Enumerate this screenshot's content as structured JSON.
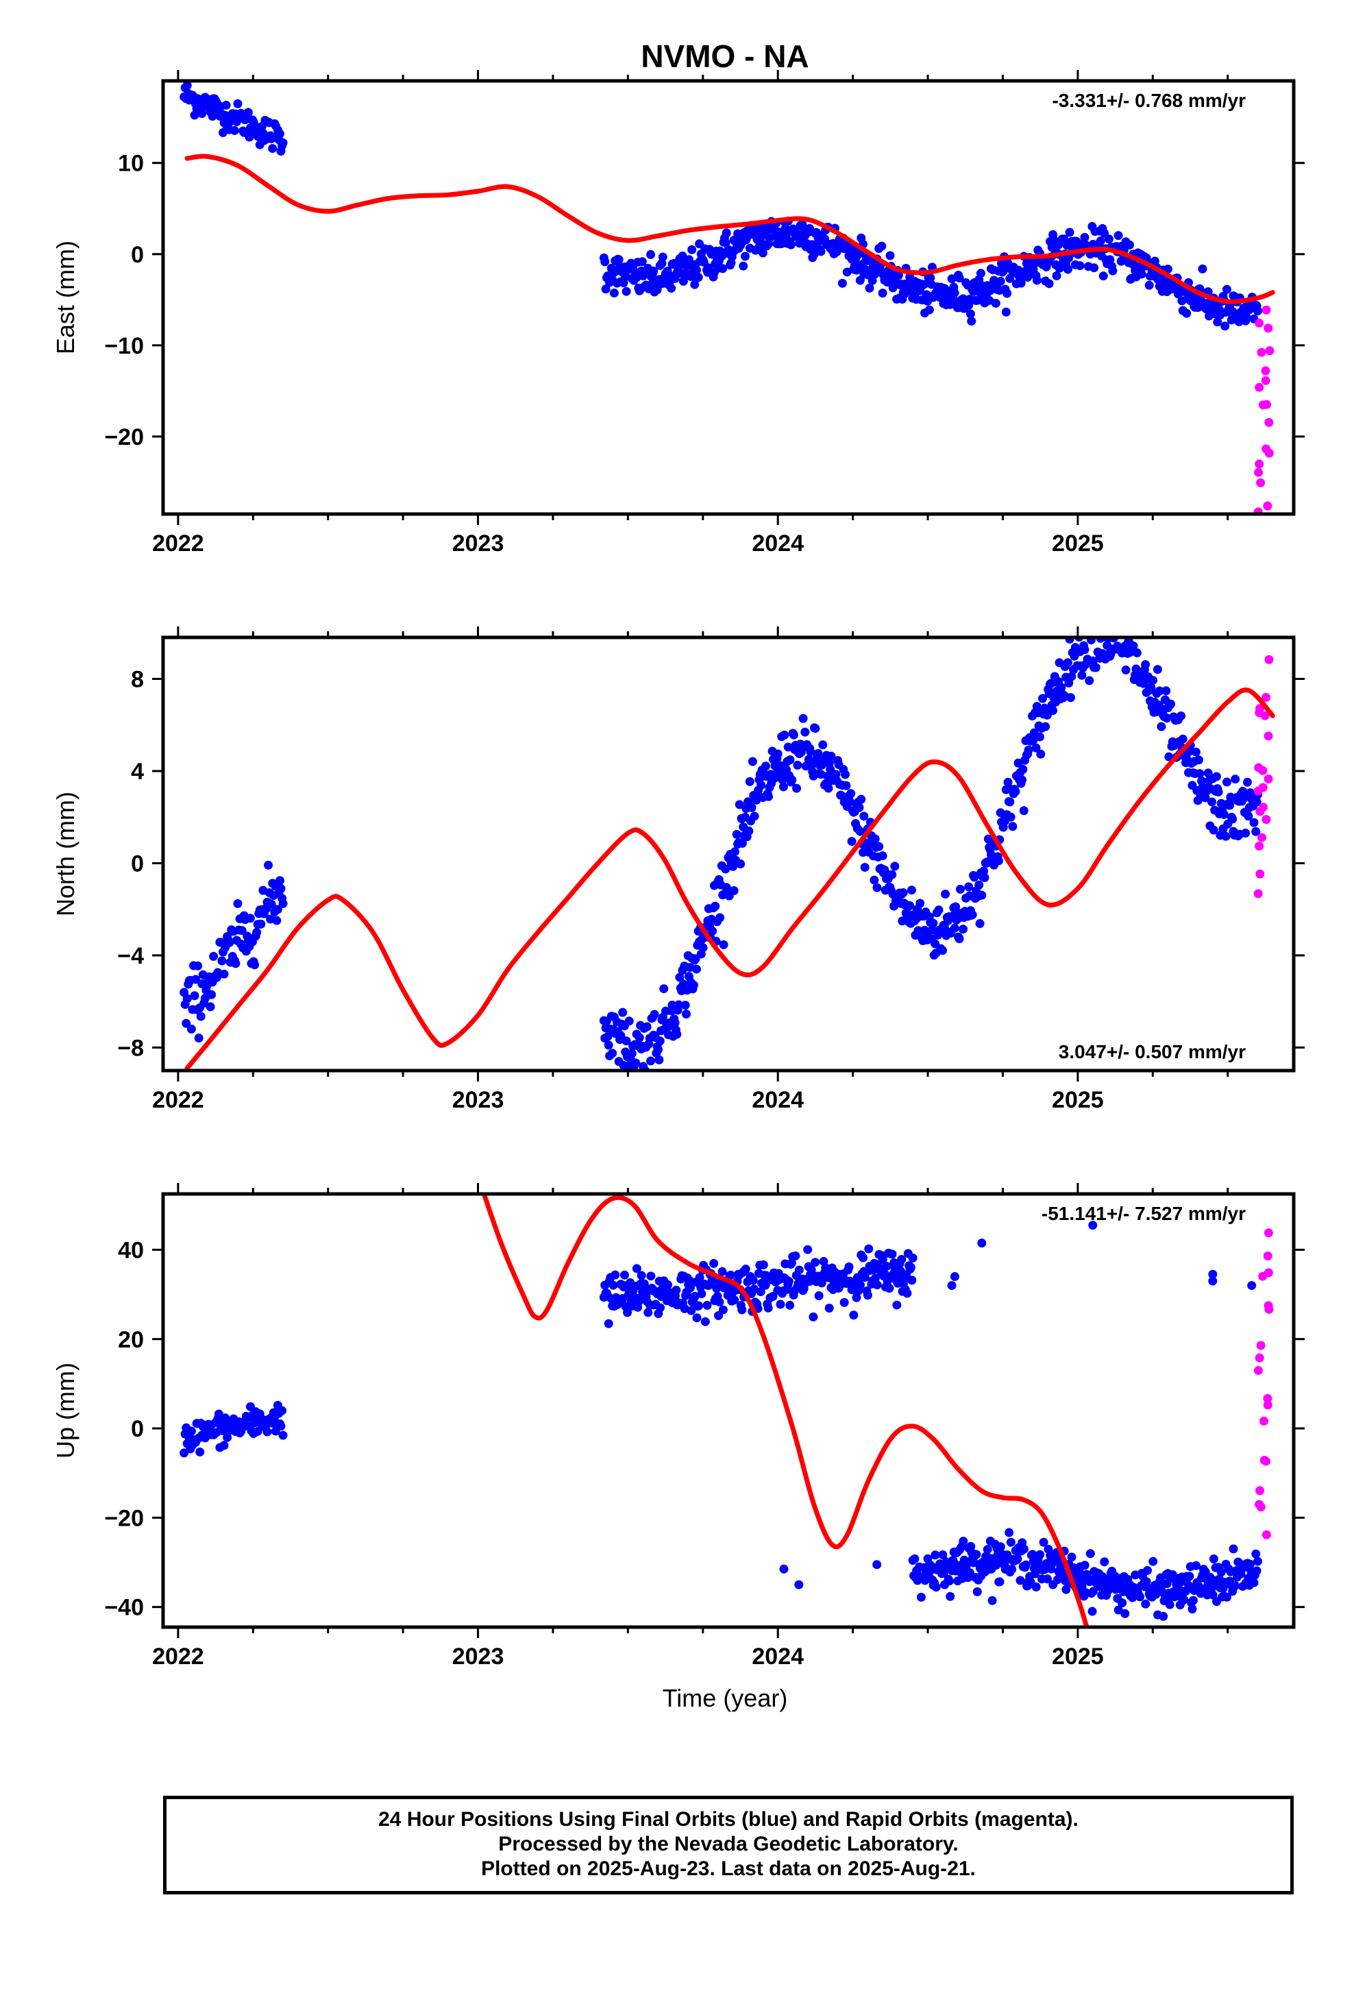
{
  "title": "NVMO - NA",
  "xlabel": "Time (year)",
  "footer": {
    "line1": "24 Hour Positions Using Final Orbits (blue) and Rapid Orbits (magenta).",
    "line2": "Processed by the Nevada Geodetic Laboratory.",
    "line3": "Plotted on 2025-Aug-23. Last data on 2025-Aug-21."
  },
  "colors": {
    "final": "#0000ff",
    "rapid": "#ff00ff",
    "model": "#ff0000",
    "frame": "#000000"
  },
  "chart_data": [
    {
      "type": "scatter",
      "panel": "east",
      "ylabel": "East (mm)",
      "rate_text": "-3.331+/- 0.768 mm/yr",
      "rate_position": "top-right",
      "xlim": [
        2021.95,
        2025.72
      ],
      "ylim": [
        -28.5,
        19
      ],
      "xticks": [
        2022,
        2023,
        2024,
        2025
      ],
      "yticks": [
        10,
        0,
        -10,
        -20
      ],
      "segments": [
        {
          "x0": 2022.02,
          "x1": 2022.35,
          "ya": 17.5,
          "yb": 12.5,
          "amp": 0,
          "phase": 0,
          "noise": 1.4,
          "n": 95
        },
        {
          "x0": 2023.42,
          "x1": 2025.6,
          "ya": 0.5,
          "yb": -3.5,
          "amp": 3.0,
          "phase": 0.2,
          "noise": 1.8,
          "n": 700
        }
      ],
      "rapid": {
        "x0": 2025.6,
        "x1": 2025.64,
        "ya": -6,
        "yb": -28,
        "noise": 1.5,
        "n": 18
      },
      "model": [
        [
          2022.03,
          10.5
        ],
        [
          2022.1,
          10.7
        ],
        [
          2022.2,
          9.7
        ],
        [
          2022.3,
          7.5
        ],
        [
          2022.4,
          5.4
        ],
        [
          2022.5,
          4.7
        ],
        [
          2022.6,
          5.4
        ],
        [
          2022.7,
          6.1
        ],
        [
          2022.8,
          6.4
        ],
        [
          2022.9,
          6.5
        ],
        [
          2023.0,
          6.9
        ],
        [
          2023.1,
          7.4
        ],
        [
          2023.2,
          6.3
        ],
        [
          2023.3,
          4.2
        ],
        [
          2023.4,
          2.3
        ],
        [
          2023.5,
          1.5
        ],
        [
          2023.6,
          2.0
        ],
        [
          2023.7,
          2.6
        ],
        [
          2023.8,
          3.0
        ],
        [
          2023.9,
          3.3
        ],
        [
          2024.0,
          3.7
        ],
        [
          2024.1,
          3.8
        ],
        [
          2024.2,
          2.3
        ],
        [
          2024.3,
          0.2
        ],
        [
          2024.4,
          -1.7
        ],
        [
          2024.5,
          -2.0
        ],
        [
          2024.6,
          -1.2
        ],
        [
          2024.7,
          -0.6
        ],
        [
          2024.8,
          -0.3
        ],
        [
          2024.9,
          -0.2
        ],
        [
          2025.0,
          0.3
        ],
        [
          2025.1,
          0.5
        ],
        [
          2025.2,
          -0.6
        ],
        [
          2025.3,
          -2.3
        ],
        [
          2025.4,
          -4.2
        ],
        [
          2025.5,
          -5.2
        ],
        [
          2025.6,
          -4.8
        ],
        [
          2025.65,
          -4.2
        ]
      ]
    },
    {
      "type": "scatter",
      "panel": "north",
      "ylabel": "North (mm)",
      "rate_text": "3.047+/- 0.507 mm/yr",
      "rate_position": "bottom-right",
      "xlim": [
        2021.95,
        2025.72
      ],
      "ylim": [
        -9,
        9.8
      ],
      "xticks": [
        2022,
        2023,
        2024,
        2025
      ],
      "yticks": [
        8,
        4,
        0,
        -4,
        -8
      ],
      "segments": [
        {
          "x0": 2022.02,
          "x1": 2022.35,
          "ya": -6.5,
          "yb": -1.0,
          "amp": 0,
          "phase": 0,
          "noise": 1.2,
          "n": 95
        },
        {
          "x0": 2023.42,
          "x1": 2025.6,
          "ya": -3.5,
          "yb": 7.5,
          "amp": 5.0,
          "phase": 1.2,
          "noise": 1.1,
          "n": 700
        }
      ],
      "rapid": {
        "x0": 2025.6,
        "x1": 2025.64,
        "ya": 8,
        "yb": -0.5,
        "noise": 1.5,
        "n": 18
      },
      "model": [
        [
          2022.03,
          -8.9
        ],
        [
          2022.1,
          -7.8
        ],
        [
          2022.2,
          -6.2
        ],
        [
          2022.3,
          -4.6
        ],
        [
          2022.4,
          -2.8
        ],
        [
          2022.5,
          -1.6
        ],
        [
          2022.55,
          -1.6
        ],
        [
          2022.65,
          -3.0
        ],
        [
          2022.75,
          -5.5
        ],
        [
          2022.85,
          -7.6
        ],
        [
          2022.9,
          -7.8
        ],
        [
          2023.0,
          -6.6
        ],
        [
          2023.1,
          -4.6
        ],
        [
          2023.2,
          -3.0
        ],
        [
          2023.3,
          -1.5
        ],
        [
          2023.4,
          0.0
        ],
        [
          2023.5,
          1.3
        ],
        [
          2023.55,
          1.3
        ],
        [
          2023.62,
          0.2
        ],
        [
          2023.7,
          -1.8
        ],
        [
          2023.8,
          -3.8
        ],
        [
          2023.88,
          -4.8
        ],
        [
          2023.95,
          -4.5
        ],
        [
          2024.05,
          -2.8
        ],
        [
          2024.15,
          -1.2
        ],
        [
          2024.25,
          0.5
        ],
        [
          2024.35,
          2.2
        ],
        [
          2024.45,
          3.8
        ],
        [
          2024.52,
          4.4
        ],
        [
          2024.6,
          3.8
        ],
        [
          2024.7,
          1.6
        ],
        [
          2024.8,
          -0.5
        ],
        [
          2024.9,
          -1.8
        ],
        [
          2025.0,
          -1.1
        ],
        [
          2025.1,
          0.8
        ],
        [
          2025.2,
          2.6
        ],
        [
          2025.3,
          4.2
        ],
        [
          2025.4,
          5.6
        ],
        [
          2025.5,
          7.0
        ],
        [
          2025.57,
          7.5
        ],
        [
          2025.65,
          6.4
        ]
      ]
    },
    {
      "type": "scatter",
      "panel": "up",
      "ylabel": "Up (mm)",
      "rate_text": "-51.141+/- 7.527 mm/yr",
      "rate_position": "top-right",
      "xlim": [
        2021.95,
        2025.72
      ],
      "ylim": [
        -44.5,
        52.5
      ],
      "xticks": [
        2022,
        2023,
        2024,
        2025
      ],
      "yticks": [
        40,
        20,
        0,
        -20,
        -40
      ],
      "segments": [
        {
          "x0": 2022.02,
          "x1": 2022.35,
          "ya": -2.0,
          "yb": 2.5,
          "amp": 0,
          "phase": 0,
          "noise": 3.0,
          "n": 95
        },
        {
          "x0": 2023.42,
          "x1": 2024.45,
          "ya": 29,
          "yb": 35,
          "amp": 0,
          "phase": 0,
          "noise": 4.5,
          "n": 330
        },
        {
          "x0": 2024.45,
          "x1": 2025.6,
          "ya": -32,
          "yb": -34,
          "amp": 3,
          "phase": 0.5,
          "noise": 4.0,
          "n": 370
        }
      ],
      "extra_points": [
        [
          2024.02,
          -31.5
        ],
        [
          2024.07,
          -35
        ],
        [
          2024.33,
          -30.5
        ],
        [
          2024.58,
          32
        ],
        [
          2024.59,
          34
        ],
        [
          2024.68,
          41.5
        ],
        [
          2025.05,
          45.5
        ],
        [
          2025.45,
          33
        ],
        [
          2025.45,
          34.5
        ],
        [
          2025.58,
          32
        ]
      ],
      "rapid": {
        "x0": 2025.6,
        "x1": 2025.64,
        "ya": 43,
        "yb": -23,
        "noise": 3,
        "n": 18
      },
      "model": [
        [
          2023.02,
          52.5
        ],
        [
          2023.08,
          41.0
        ],
        [
          2023.15,
          30.0
        ],
        [
          2023.19,
          25.0
        ],
        [
          2023.23,
          26.5
        ],
        [
          2023.3,
          37.0
        ],
        [
          2023.38,
          47.0
        ],
        [
          2023.45,
          51.5
        ],
        [
          2023.52,
          50.0
        ],
        [
          2023.6,
          42.0
        ],
        [
          2023.7,
          37.0
        ],
        [
          2023.8,
          34.0
        ],
        [
          2023.88,
          31.0
        ],
        [
          2023.95,
          21.0
        ],
        [
          2024.05,
          0.0
        ],
        [
          2024.12,
          -17.0
        ],
        [
          2024.18,
          -26.0
        ],
        [
          2024.23,
          -24.0
        ],
        [
          2024.3,
          -12.0
        ],
        [
          2024.38,
          -2.0
        ],
        [
          2024.45,
          0.5
        ],
        [
          2024.52,
          -2.5
        ],
        [
          2024.6,
          -9.0
        ],
        [
          2024.68,
          -14.0
        ],
        [
          2024.75,
          -15.5
        ],
        [
          2024.82,
          -16.0
        ],
        [
          2024.88,
          -19.0
        ],
        [
          2024.94,
          -27.0
        ],
        [
          2025.0,
          -38.0
        ],
        [
          2025.03,
          -44.5
        ]
      ]
    }
  ]
}
